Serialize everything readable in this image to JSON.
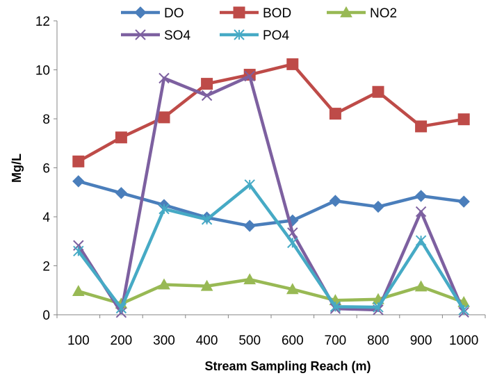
{
  "chart_data": {
    "type": "line",
    "xlabel": "Stream Sampling Reach (m)",
    "ylabel": "Mg/L",
    "categories": [
      "100",
      "200",
      "300",
      "400",
      "500",
      "600",
      "700",
      "800",
      "900",
      "1000"
    ],
    "ylim": [
      0,
      12
    ],
    "yticks": [
      "0",
      "2",
      "4",
      "6",
      "8",
      "10",
      "12"
    ],
    "grid": false,
    "legend_position": "top",
    "series": [
      {
        "name": "DO",
        "color": "#4A7EBB",
        "marker": "diamond",
        "values": [
          5.45,
          4.97,
          4.48,
          3.97,
          3.63,
          3.85,
          4.65,
          4.41,
          4.85,
          4.62
        ]
      },
      {
        "name": "BOD",
        "color": "#BE4B48",
        "marker": "square",
        "values": [
          6.26,
          7.24,
          8.06,
          9.43,
          9.8,
          10.23,
          8.21,
          9.1,
          7.69,
          7.98
        ]
      },
      {
        "name": "NO2",
        "color": "#98B954",
        "marker": "triangle",
        "values": [
          0.96,
          0.45,
          1.23,
          1.17,
          1.44,
          1.04,
          0.59,
          0.63,
          1.15,
          0.51
        ]
      },
      {
        "name": "SO4",
        "color": "#7D60A0",
        "marker": "x",
        "values": [
          2.83,
          0.09,
          9.66,
          8.95,
          9.74,
          3.35,
          0.25,
          0.2,
          4.21,
          0.1
        ]
      },
      {
        "name": "PO4",
        "color": "#46AAC5",
        "marker": "asterisk",
        "values": [
          2.6,
          0.27,
          4.32,
          3.89,
          5.31,
          2.94,
          0.33,
          0.31,
          3.03,
          0.2
        ]
      }
    ]
  }
}
